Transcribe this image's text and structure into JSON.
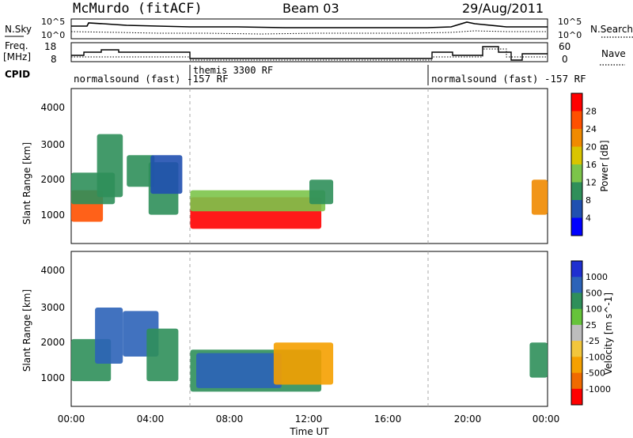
{
  "header": {
    "station": "McMurdo (fitACF)",
    "beam": "Beam 03",
    "date": "29/Aug/2011"
  },
  "status_panels": {
    "noise_left_label": "N.Sky",
    "noise_right_label": "N.Search",
    "noise_ticks_left": [
      "10^5",
      "10^0"
    ],
    "noise_ticks_right": [
      "10^5",
      "10^0"
    ],
    "freq_label_1": "Freq.",
    "freq_label_2": "[MHz]",
    "freq_ticks": [
      "18",
      "8"
    ],
    "nave_label": "Nave",
    "nave_ticks": [
      "60",
      "0"
    ],
    "cpid_label": "CPID",
    "cpid_segments": [
      {
        "text": "normalsound (fast) -157 RF",
        "start_h": 0
      },
      {
        "text": "themis 3300 RF",
        "start_h": 6
      },
      {
        "text": "normalsound (fast) -157 RF",
        "start_h": 18
      }
    ]
  },
  "power_colorbar": {
    "label": "Power [dB]",
    "ticks": [
      "28",
      "24",
      "20",
      "16",
      "12",
      "8",
      "4"
    ],
    "colors": [
      "#0000ff",
      "#2050b0",
      "#2f8f5a",
      "#7cc44a",
      "#d9c400",
      "#f08a00",
      "#ff5000",
      "#ff0000"
    ]
  },
  "velocity_colorbar": {
    "label": "Velocity [m s^-1]",
    "ticks": [
      "1000",
      "500",
      "100",
      "25",
      "-25",
      "-100",
      "-500",
      "-1000"
    ],
    "colors": [
      "#1f2fd0",
      "#2c63b8",
      "#2f8f5a",
      "#66c33a",
      "#bdbdbd",
      "#f2c63c",
      "#f5a000",
      "#f06a00",
      "#ff0000"
    ]
  },
  "axes": {
    "ylabel": "Slant Range [km]",
    "xlabel": "Time UT",
    "xticks": [
      "00:00",
      "04:00",
      "08:00",
      "12:00",
      "16:00",
      "20:00",
      "00:00"
    ],
    "yticks": [
      "1000",
      "2000",
      "3000",
      "4000"
    ]
  },
  "chart_data": {
    "type": "heatmap",
    "x_range_h": [
      0,
      24
    ],
    "y_range_km": [
      180,
      4600
    ],
    "panels": [
      {
        "name": "power",
        "blobs": [
          {
            "t0": 0.0,
            "t1": 1.6,
            "r0": 800,
            "r1": 1700,
            "v": 24
          },
          {
            "t0": 0.0,
            "t1": 2.2,
            "r0": 1300,
            "r1": 2200,
            "v": 10
          },
          {
            "t0": 1.3,
            "t1": 2.6,
            "r0": 1500,
            "r1": 3300,
            "v": 8
          },
          {
            "t0": 2.8,
            "t1": 4.2,
            "r0": 1800,
            "r1": 2700,
            "v": 10
          },
          {
            "t0": 3.9,
            "t1": 5.4,
            "r0": 1000,
            "r1": 2500,
            "v": 9
          },
          {
            "t0": 4.0,
            "t1": 5.6,
            "r0": 1600,
            "r1": 2700,
            "v": 6
          },
          {
            "t0": 6.0,
            "t1": 12.6,
            "r0": 600,
            "r1": 1500,
            "v": 28
          },
          {
            "t0": 6.0,
            "t1": 12.8,
            "r0": 1100,
            "r1": 1700,
            "v": 12
          },
          {
            "t0": 12.0,
            "t1": 13.2,
            "r0": 1300,
            "r1": 2000,
            "v": 8
          },
          {
            "t0": 23.2,
            "t1": 24.0,
            "r0": 1000,
            "r1": 2000,
            "v": 22
          }
        ]
      },
      {
        "name": "velocity",
        "blobs": [
          {
            "t0": 0.0,
            "t1": 2.0,
            "r0": 900,
            "r1": 2100,
            "v": 100
          },
          {
            "t0": 1.2,
            "t1": 2.6,
            "r0": 1400,
            "r1": 3000,
            "v": 800
          },
          {
            "t0": 2.6,
            "t1": 4.4,
            "r0": 1600,
            "r1": 2900,
            "v": 700
          },
          {
            "t0": 3.8,
            "t1": 5.4,
            "r0": 900,
            "r1": 2400,
            "v": 300
          },
          {
            "t0": 6.0,
            "t1": 12.6,
            "r0": 600,
            "r1": 1800,
            "v": 200
          },
          {
            "t0": 6.3,
            "t1": 10.6,
            "r0": 700,
            "r1": 1700,
            "v": 800
          },
          {
            "t0": 10.2,
            "t1": 13.2,
            "r0": 800,
            "r1": 2000,
            "v": -300
          },
          {
            "t0": 23.1,
            "t1": 24.0,
            "r0": 1000,
            "r1": 2000,
            "v": 120
          }
        ]
      }
    ]
  }
}
